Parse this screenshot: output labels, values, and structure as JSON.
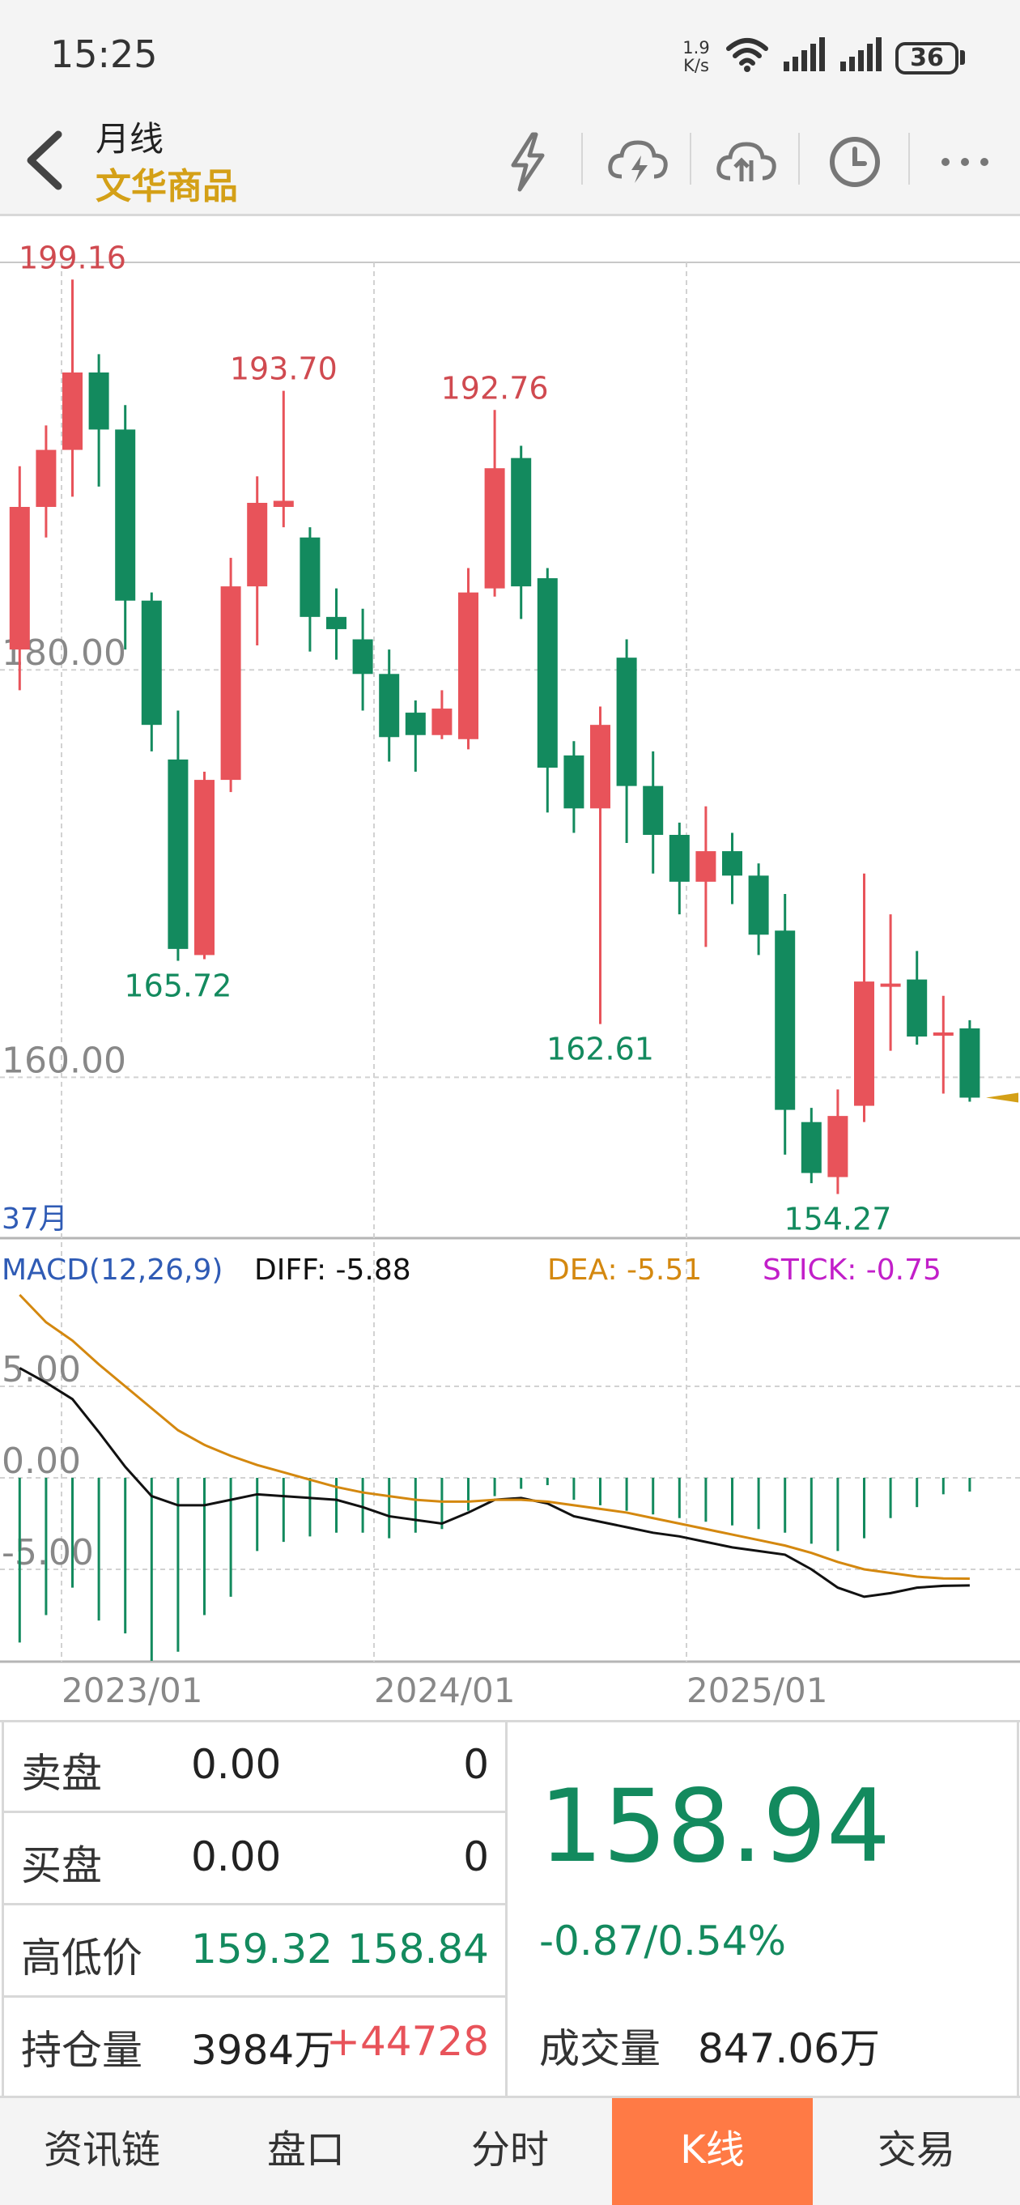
{
  "status_bar": {
    "time": "15:25",
    "speed_value": "1.9",
    "speed_unit": "K/s",
    "battery": "36"
  },
  "header": {
    "period": "月线",
    "instrument": "文华商品"
  },
  "toolbar": [
    {
      "icon": "lightning-icon"
    },
    {
      "icon": "cloud-lightning-icon"
    },
    {
      "icon": "cloud-upload-icon"
    },
    {
      "icon": "clock-icon"
    },
    {
      "icon": "more-icon"
    }
  ],
  "colors": {
    "up": "#e8535a",
    "down": "#138a5e",
    "diff": "#111111",
    "dea": "#d4880f",
    "stick": "#c21fc9",
    "accent": "#ff7a45",
    "brand": "#d4a017"
  },
  "chart_data": [
    {
      "type": "candlestick",
      "ylim": [
        152.5,
        201
      ],
      "y_ticks": [
        "180.00",
        "160.00"
      ],
      "x_ticks": [
        "2023/01",
        "2024/01",
        "2025/01"
      ],
      "bar_count_label": "37月",
      "annotations": [
        "199.16",
        "193.70",
        "192.76",
        "165.72",
        "162.61",
        "154.27"
      ],
      "candles": [
        {
          "o": 181.0,
          "c": 188.0,
          "h": 190.0,
          "l": 179.0
        },
        {
          "o": 188.0,
          "c": 190.8,
          "h": 192.0,
          "l": 186.5
        },
        {
          "o": 190.8,
          "c": 194.6,
          "h": 199.16,
          "l": 188.5
        },
        {
          "o": 194.6,
          "c": 191.8,
          "h": 195.5,
          "l": 189.0
        },
        {
          "o": 191.8,
          "c": 183.4,
          "h": 193.0,
          "l": 181.0
        },
        {
          "o": 183.4,
          "c": 177.3,
          "h": 183.8,
          "l": 176.0
        },
        {
          "o": 175.6,
          "c": 166.3,
          "h": 178.0,
          "l": 165.72
        },
        {
          "o": 166.0,
          "c": 174.6,
          "h": 175.0,
          "l": 165.8
        },
        {
          "o": 174.6,
          "c": 184.1,
          "h": 185.5,
          "l": 174.0
        },
        {
          "o": 184.1,
          "c": 188.2,
          "h": 189.5,
          "l": 181.2
        },
        {
          "o": 188.0,
          "c": 188.3,
          "h": 193.7,
          "l": 187.0
        },
        {
          "o": 186.5,
          "c": 182.6,
          "h": 187.0,
          "l": 180.9
        },
        {
          "o": 182.6,
          "c": 182.0,
          "h": 184.0,
          "l": 180.5
        },
        {
          "o": 181.5,
          "c": 179.8,
          "h": 183.0,
          "l": 178.0
        },
        {
          "o": 179.8,
          "c": 176.7,
          "h": 181.0,
          "l": 175.5
        },
        {
          "o": 177.9,
          "c": 176.8,
          "h": 178.5,
          "l": 175.0
        },
        {
          "o": 176.8,
          "c": 178.1,
          "h": 179.0,
          "l": 176.6
        },
        {
          "o": 176.6,
          "c": 183.8,
          "h": 185.0,
          "l": 176.1
        },
        {
          "o": 184.0,
          "c": 189.9,
          "h": 192.76,
          "l": 183.6
        },
        {
          "o": 190.4,
          "c": 184.1,
          "h": 191.0,
          "l": 182.5
        },
        {
          "o": 184.5,
          "c": 175.2,
          "h": 185.0,
          "l": 173.0
        },
        {
          "o": 175.8,
          "c": 173.2,
          "h": 176.5,
          "l": 172.0
        },
        {
          "o": 173.2,
          "c": 177.3,
          "h": 178.2,
          "l": 162.61
        },
        {
          "o": 180.6,
          "c": 174.3,
          "h": 181.5,
          "l": 171.5
        },
        {
          "o": 174.3,
          "c": 171.9,
          "h": 176.0,
          "l": 170.0
        },
        {
          "o": 171.9,
          "c": 169.6,
          "h": 172.5,
          "l": 168.0
        },
        {
          "o": 169.6,
          "c": 171.1,
          "h": 173.3,
          "l": 166.4
        },
        {
          "o": 171.1,
          "c": 169.9,
          "h": 172.0,
          "l": 168.5
        },
        {
          "o": 169.9,
          "c": 167.0,
          "h": 170.5,
          "l": 166.0
        },
        {
          "o": 167.2,
          "c": 158.4,
          "h": 169.0,
          "l": 156.2
        },
        {
          "o": 157.8,
          "c": 155.3,
          "h": 158.5,
          "l": 154.8
        },
        {
          "o": 155.1,
          "c": 158.1,
          "h": 159.4,
          "l": 154.27
        },
        {
          "o": 158.6,
          "c": 164.7,
          "h": 170.0,
          "l": 157.8
        },
        {
          "o": 164.6,
          "c": 164.6,
          "h": 168.0,
          "l": 161.3
        },
        {
          "o": 164.8,
          "c": 162.0,
          "h": 166.2,
          "l": 161.6
        },
        {
          "o": 162.2,
          "c": 162.2,
          "h": 164.0,
          "l": 159.2
        },
        {
          "o": 162.4,
          "c": 159.0,
          "h": 162.8,
          "l": 158.8
        }
      ]
    },
    {
      "type": "line",
      "indicator": "MACD(12,26,9)",
      "legend": [
        {
          "label": "DIFF: -5.88",
          "color": "#111111"
        },
        {
          "label": "DEA: -5.51",
          "color": "#d4880f"
        },
        {
          "label": "STICK: -0.75",
          "color": "#c21fc9"
        }
      ],
      "ylim": [
        -10.0,
        10.0
      ],
      "y_ticks": [
        "5.00",
        "0.00",
        "-5.00"
      ],
      "series": [
        {
          "name": "DIFF",
          "values": [
            6.0,
            5.2,
            4.3,
            2.5,
            0.6,
            -1.0,
            -1.5,
            -1.5,
            -1.2,
            -0.9,
            -1.0,
            -1.1,
            -1.2,
            -1.6,
            -2.1,
            -2.3,
            -2.5,
            -1.9,
            -1.2,
            -1.1,
            -1.4,
            -2.1,
            -2.4,
            -2.7,
            -3.0,
            -3.2,
            -3.5,
            -3.8,
            -4.0,
            -4.2,
            -5.0,
            -6.0,
            -6.5,
            -6.3,
            -6.0,
            -5.9,
            -5.88
          ]
        },
        {
          "name": "DEA",
          "values": [
            10.0,
            8.5,
            7.5,
            6.2,
            5.0,
            3.8,
            2.6,
            1.8,
            1.2,
            0.7,
            0.3,
            -0.1,
            -0.5,
            -0.8,
            -1.0,
            -1.2,
            -1.3,
            -1.3,
            -1.2,
            -1.2,
            -1.3,
            -1.5,
            -1.7,
            -1.9,
            -2.2,
            -2.5,
            -2.8,
            -3.1,
            -3.4,
            -3.7,
            -4.1,
            -4.6,
            -5.0,
            -5.2,
            -5.4,
            -5.5,
            -5.51
          ]
        }
      ],
      "stick": [
        -9.0,
        -7.5,
        -6.0,
        -7.8,
        -8.5,
        -10.0,
        -9.5,
        -7.5,
        -6.5,
        -4.0,
        -3.5,
        -3.2,
        -3.0,
        -3.0,
        -3.3,
        -3.0,
        -2.8,
        -1.8,
        -1.0,
        -0.6,
        -0.4,
        -1.2,
        -1.5,
        -1.8,
        -2.0,
        -2.2,
        -2.4,
        -2.6,
        -2.8,
        -3.0,
        -3.6,
        -4.0,
        -3.3,
        -2.2,
        -1.6,
        -0.9,
        -0.75
      ]
    }
  ],
  "quote": {
    "rows": [
      {
        "label": "卖盘",
        "v1": "0.00",
        "v2": "0"
      },
      {
        "label": "买盘",
        "v1": "0.00",
        "v2": "0"
      },
      {
        "label": "高低价",
        "v1": "159.32",
        "v2": "158.84"
      },
      {
        "label": "持仓量",
        "v1": "3984万",
        "v2": "+44728"
      }
    ],
    "last_price": "158.94",
    "change": "-0.87/0.54%",
    "volume_label": "成交量",
    "volume_value": "847.06万"
  },
  "tabs": [
    {
      "label": "资讯链",
      "active": false
    },
    {
      "label": "盘口",
      "active": false
    },
    {
      "label": "分时",
      "active": false
    },
    {
      "label": "K线",
      "active": true
    },
    {
      "label": "交易",
      "active": false
    }
  ]
}
